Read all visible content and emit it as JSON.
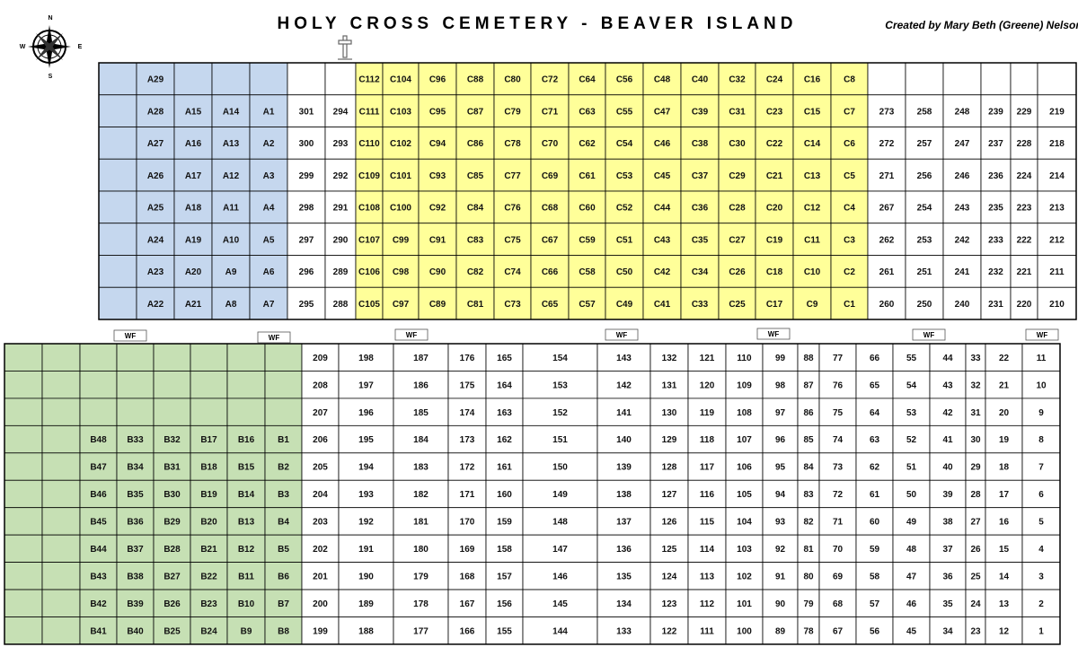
{
  "header": {
    "title": "HOLY CROSS CEMETERY - BEAVER ISLAND",
    "credit": "Created by Mary Beth (Greene) Nelson"
  },
  "compass": {
    "n": "N",
    "e": "E",
    "s": "S",
    "w": "W"
  },
  "wf_markers": [
    "WF",
    "WF",
    "WF",
    "WF",
    "WF",
    "WF",
    "WF"
  ],
  "top_grid": {
    "rows": [
      [
        null,
        "A29",
        null,
        null,
        null,
        null,
        null,
        "C112",
        "C104",
        "C96",
        "C88",
        "C80",
        "C72",
        "C64",
        "C56",
        "C48",
        "C40",
        "C32",
        "C24",
        "C16",
        "C8",
        null,
        null,
        null,
        null,
        null,
        null
      ],
      [
        null,
        "A28",
        "A15",
        "A14",
        "A1",
        "301",
        "294",
        "C111",
        "C103",
        "C95",
        "C87",
        "C79",
        "C71",
        "C63",
        "C55",
        "C47",
        "C39",
        "C31",
        "C23",
        "C15",
        "C7",
        "273",
        "258",
        "248",
        "239",
        "229",
        "219"
      ],
      [
        null,
        "A27",
        "A16",
        "A13",
        "A2",
        "300",
        "293",
        "C110",
        "C102",
        "C94",
        "C86",
        "C78",
        "C70",
        "C62",
        "C54",
        "C46",
        "C38",
        "C30",
        "C22",
        "C14",
        "C6",
        "272",
        "257",
        "247",
        "237",
        "228",
        "218"
      ],
      [
        null,
        "A26",
        "A17",
        "A12",
        "A3",
        "299",
        "292",
        "C109",
        "C101",
        "C93",
        "C85",
        "C77",
        "C69",
        "C61",
        "C53",
        "C45",
        "C37",
        "C29",
        "C21",
        "C13",
        "C5",
        "271",
        "256",
        "246",
        "236",
        "224",
        "214"
      ],
      [
        null,
        "A25",
        "A18",
        "A11",
        "A4",
        "298",
        "291",
        "C108",
        "C100",
        "C92",
        "C84",
        "C76",
        "C68",
        "C60",
        "C52",
        "C44",
        "C36",
        "C28",
        "C20",
        "C12",
        "C4",
        "267",
        "254",
        "243",
        "235",
        "223",
        "213"
      ],
      [
        null,
        "A24",
        "A19",
        "A10",
        "A5",
        "297",
        "290",
        "C107",
        "C99",
        "C91",
        "C83",
        "C75",
        "C67",
        "C59",
        "C51",
        "C43",
        "C35",
        "C27",
        "C19",
        "C11",
        "C3",
        "262",
        "253",
        "242",
        "233",
        "222",
        "212"
      ],
      [
        null,
        "A23",
        "A20",
        "A9",
        "A6",
        "296",
        "289",
        "C106",
        "C98",
        "C90",
        "C82",
        "C74",
        "C66",
        "C58",
        "C50",
        "C42",
        "C34",
        "C26",
        "C18",
        "C10",
        "C2",
        "261",
        "251",
        "241",
        "232",
        "221",
        "211"
      ],
      [
        null,
        "A22",
        "A21",
        "A8",
        "A7",
        "295",
        "288",
        "C105",
        "C97",
        "C89",
        "C81",
        "C73",
        "C65",
        "C57",
        "C49",
        "C41",
        "C33",
        "C25",
        "C17",
        "C9",
        "C1",
        "260",
        "250",
        "240",
        "231",
        "220",
        "210"
      ]
    ]
  },
  "bottom_grid": {
    "rows": [
      [
        null,
        null,
        null,
        null,
        null,
        null,
        null,
        null,
        "209",
        "198",
        "187",
        "176",
        "165",
        "154",
        "143",
        "132",
        "121",
        "110",
        "99",
        "88",
        "77",
        "66",
        "55",
        "44",
        "33",
        "22",
        "11"
      ],
      [
        null,
        null,
        null,
        null,
        null,
        null,
        null,
        null,
        "208",
        "197",
        "186",
        "175",
        "164",
        "153",
        "142",
        "131",
        "120",
        "109",
        "98",
        "87",
        "76",
        "65",
        "54",
        "43",
        "32",
        "21",
        "10"
      ],
      [
        null,
        null,
        null,
        null,
        null,
        null,
        null,
        null,
        "207",
        "196",
        "185",
        "174",
        "163",
        "152",
        "141",
        "130",
        "119",
        "108",
        "97",
        "86",
        "75",
        "64",
        "53",
        "42",
        "31",
        "20",
        "9"
      ],
      [
        null,
        null,
        "B48",
        "B33",
        "B32",
        "B17",
        "B16",
        "B1",
        "206",
        "195",
        "184",
        "173",
        "162",
        "151",
        "140",
        "129",
        "118",
        "107",
        "96",
        "85",
        "74",
        "63",
        "52",
        "41",
        "30",
        "19",
        "8"
      ],
      [
        null,
        null,
        "B47",
        "B34",
        "B31",
        "B18",
        "B15",
        "B2",
        "205",
        "194",
        "183",
        "172",
        "161",
        "150",
        "139",
        "128",
        "117",
        "106",
        "95",
        "84",
        "73",
        "62",
        "51",
        "40",
        "29",
        "18",
        "7"
      ],
      [
        null,
        null,
        "B46",
        "B35",
        "B30",
        "B19",
        "B14",
        "B3",
        "204",
        "193",
        "182",
        "171",
        "160",
        "149",
        "138",
        "127",
        "116",
        "105",
        "94",
        "83",
        "72",
        "61",
        "50",
        "39",
        "28",
        "17",
        "6"
      ],
      [
        null,
        null,
        "B45",
        "B36",
        "B29",
        "B20",
        "B13",
        "B4",
        "203",
        "192",
        "181",
        "170",
        "159",
        "148",
        "137",
        "126",
        "115",
        "104",
        "93",
        "82",
        "71",
        "60",
        "49",
        "38",
        "27",
        "16",
        "5"
      ],
      [
        null,
        null,
        "B44",
        "B37",
        "B28",
        "B21",
        "B12",
        "B5",
        "202",
        "191",
        "180",
        "169",
        "158",
        "147",
        "136",
        "125",
        "114",
        "103",
        "92",
        "81",
        "70",
        "59",
        "48",
        "37",
        "26",
        "15",
        "4"
      ],
      [
        null,
        null,
        "B43",
        "B38",
        "B27",
        "B22",
        "B11",
        "B6",
        "201",
        "190",
        "179",
        "168",
        "157",
        "146",
        "135",
        "124",
        "113",
        "102",
        "91",
        "80",
        "69",
        "58",
        "47",
        "36",
        "25",
        "14",
        "3"
      ],
      [
        null,
        null,
        "B42",
        "B39",
        "B26",
        "B23",
        "B10",
        "B7",
        "200",
        "189",
        "178",
        "167",
        "156",
        "145",
        "134",
        "123",
        "112",
        "101",
        "90",
        "79",
        "68",
        "57",
        "46",
        "35",
        "24",
        "13",
        "2"
      ],
      [
        null,
        null,
        "B41",
        "B40",
        "B25",
        "B24",
        "B9",
        "B8",
        "199",
        "188",
        "177",
        "166",
        "155",
        "144",
        "133",
        "122",
        "111",
        "100",
        "89",
        "78",
        "67",
        "56",
        "45",
        "34",
        "23",
        "12",
        "1"
      ]
    ]
  }
}
